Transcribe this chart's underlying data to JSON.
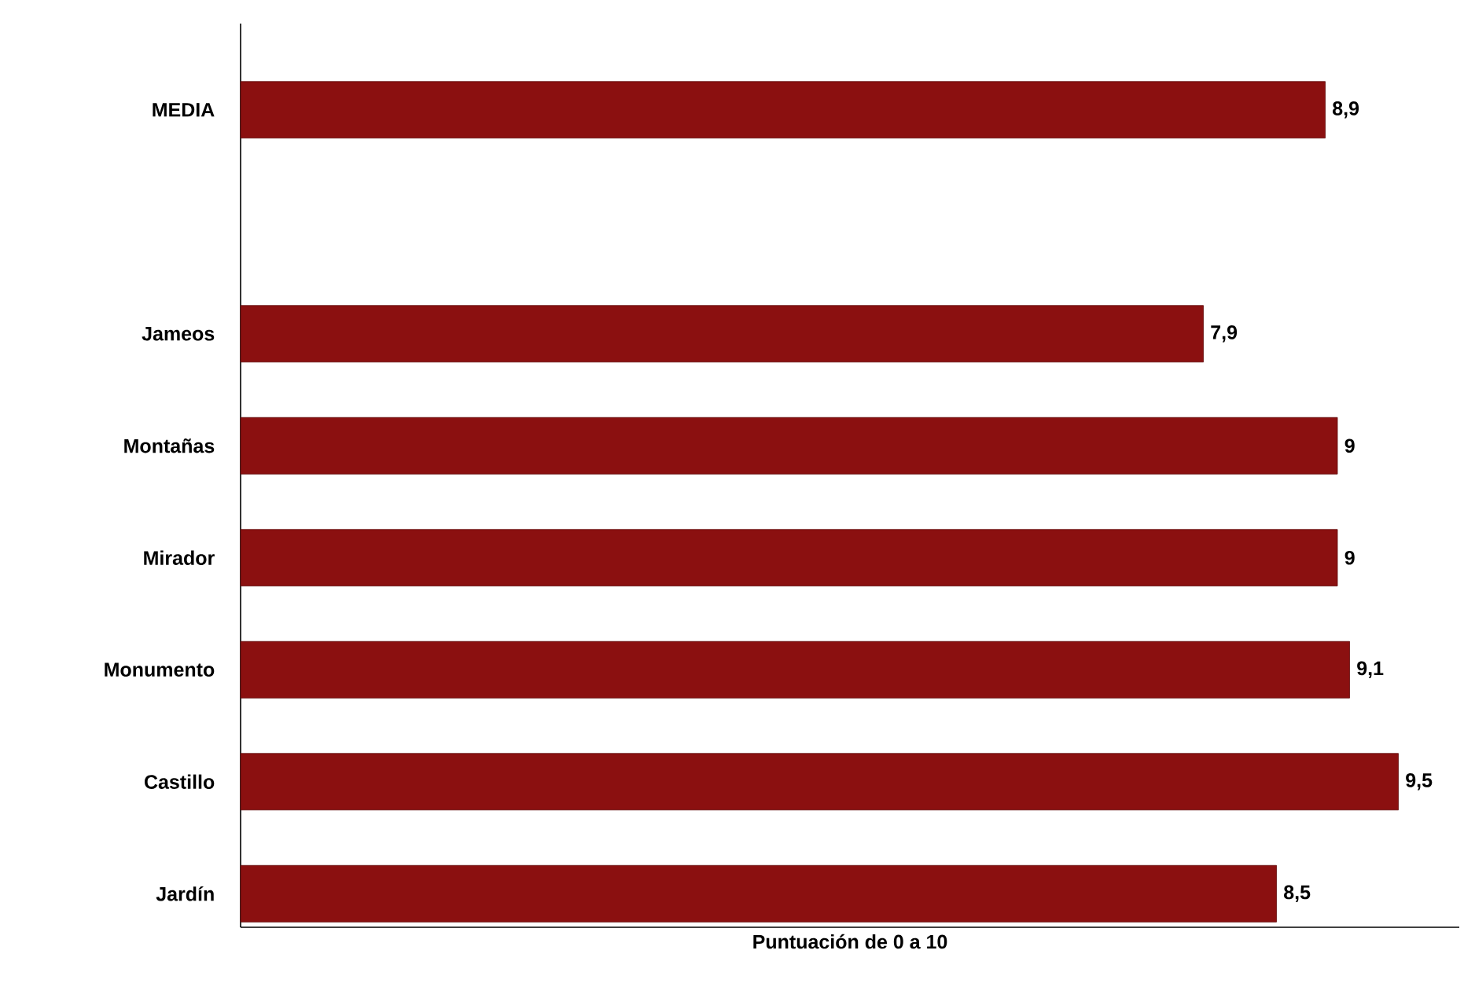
{
  "chart_data": {
    "type": "bar",
    "orientation": "horizontal",
    "xlabel": "Puntuación de 0 a 10",
    "categories": [
      "MEDIA",
      null,
      "Jameos",
      "Montañas",
      "Mirador",
      "Monumento",
      "Castillo",
      "Jardín"
    ],
    "values": [
      8.9,
      null,
      7.9,
      9,
      9,
      9.1,
      9.5,
      8.5
    ],
    "value_labels": [
      "8,9",
      null,
      "7,9",
      "9",
      "9",
      "9,1",
      "9,5",
      "8,5"
    ],
    "color": "#8b1010",
    "xlim": [
      0,
      10
    ],
    "tick_labels": "y"
  }
}
